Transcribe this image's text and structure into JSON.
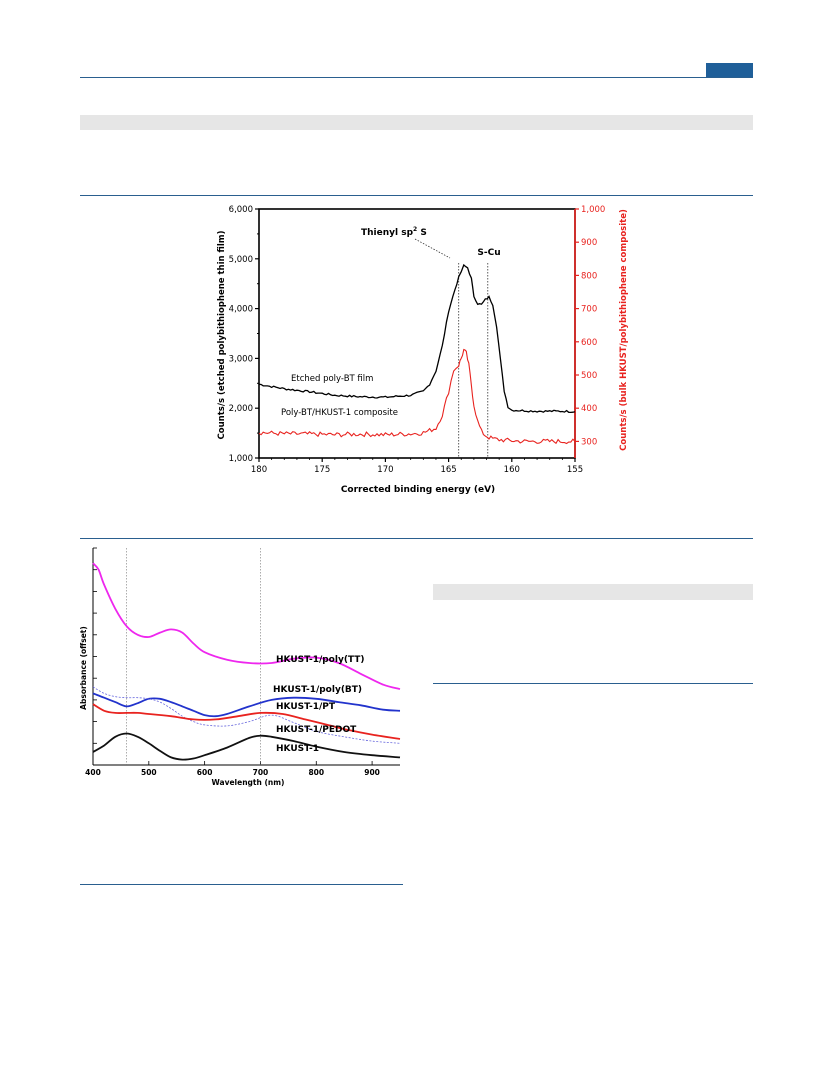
{
  "page": {
    "accent_color": "#1f5f99",
    "rule_color": "#2a5f8f",
    "band_color": "#e6e6e6"
  },
  "figure_xps": {
    "chart_data": {
      "type": "line",
      "xlabel": "Corrected binding energy (eV)",
      "ylabel_left": "Counts/s (etched polybithiophene thin film)",
      "ylabel_right": "Counts/s (bulk HKUST/polybithiophene composite)",
      "xlim": [
        180,
        155
      ],
      "x_ticks": [
        "180",
        "175",
        "170",
        "165",
        "160",
        "155"
      ],
      "ylim_left": [
        1000,
        6000
      ],
      "y_ticks_left": [
        "1,000",
        "2,000",
        "3,000",
        "4,000",
        "5,000",
        "6,000"
      ],
      "ylim_right": [
        250,
        1000
      ],
      "y_ticks_right": [
        "300",
        "400",
        "500",
        "600",
        "700",
        "800",
        "900",
        "1,000"
      ],
      "reference_lines": [
        164.2,
        161.9
      ],
      "annotations": {
        "thienyl": "Thienyl sp",
        "thienyl_sup": "2",
        "thienyl_tail": " S",
        "scu": "S-Cu"
      },
      "series": [
        {
          "name": "Etched poly-BT film",
          "axis": "left",
          "color": "#000000",
          "x": [
            180,
            178,
            176,
            174,
            172,
            170,
            168,
            167,
            166.5,
            166,
            165.5,
            165,
            164.5,
            164.2,
            163.8,
            163.5,
            163.2,
            163,
            162.7,
            162.4,
            162.1,
            161.8,
            161.5,
            161.2,
            160.9,
            160.6,
            160.3,
            160,
            159,
            158,
            157,
            156,
            155
          ],
          "y": [
            2480,
            2390,
            2330,
            2260,
            2230,
            2220,
            2260,
            2340,
            2480,
            2750,
            3250,
            3950,
            4380,
            4620,
            4860,
            4820,
            4600,
            4250,
            4100,
            4080,
            4180,
            4230,
            4080,
            3650,
            2980,
            2350,
            2030,
            1960,
            1950,
            1940,
            1940,
            1940,
            1930
          ]
        },
        {
          "name": "Poly-BT/HKUST-1 composite",
          "axis": "right",
          "color": "#e8231f",
          "x": [
            180,
            178,
            176,
            174,
            172,
            170,
            168,
            167,
            166,
            165.5,
            165,
            164.6,
            164.2,
            164,
            163.8,
            163.6,
            163.4,
            163.2,
            163,
            162.7,
            162.4,
            162.1,
            161.8,
            161.5,
            161,
            160,
            159,
            158,
            157,
            156,
            155
          ],
          "y": [
            327,
            323,
            322,
            320,
            322,
            320,
            323,
            326,
            340,
            380,
            450,
            515,
            530,
            550,
            575,
            565,
            530,
            470,
            410,
            360,
            330,
            318,
            312,
            308,
            305,
            302,
            300,
            300,
            300,
            300,
            300
          ]
        }
      ],
      "legend_labels": {
        "etched": "Etched poly-BT film",
        "composite": "Poly-BT/HKUST-1 composite"
      }
    }
  },
  "figure_uvvis": {
    "chart_data": {
      "type": "line",
      "xlabel": "Wavelength (nm)",
      "ylabel": "Absorbance (offset)",
      "xlim": [
        400,
        950
      ],
      "x_ticks": [
        "400",
        "500",
        "600",
        "700",
        "800",
        "900"
      ],
      "reference_lines": [
        460,
        700
      ],
      "series": [
        {
          "name": "HKUST-1/poly(TT)",
          "color": "#ee27ee",
          "x": [
            400,
            410,
            420,
            440,
            460,
            480,
            500,
            520,
            540,
            560,
            580,
            600,
            640,
            680,
            720,
            760,
            800,
            840,
            880,
            920,
            950
          ],
          "y": [
            9.3,
            9.0,
            8.3,
            7.2,
            6.4,
            6.0,
            5.9,
            6.1,
            6.25,
            6.1,
            5.6,
            5.2,
            4.85,
            4.7,
            4.7,
            4.9,
            4.95,
            4.7,
            4.2,
            3.7,
            3.5
          ]
        },
        {
          "name": "HKUST-1/poly(BT)",
          "color": "#2233cc",
          "x": [
            400,
            420,
            440,
            460,
            480,
            500,
            520,
            540,
            560,
            580,
            600,
            620,
            640,
            680,
            720,
            760,
            800,
            840,
            880,
            920,
            950
          ],
          "y": [
            3.3,
            3.1,
            2.9,
            2.7,
            2.85,
            3.05,
            3.05,
            2.9,
            2.7,
            2.5,
            2.3,
            2.25,
            2.35,
            2.7,
            3.0,
            3.1,
            3.05,
            2.9,
            2.75,
            2.55,
            2.5
          ]
        },
        {
          "name": "HKUST-1/PT",
          "color": "#6666dd",
          "dashed": true,
          "x": [
            400,
            420,
            440,
            460,
            480,
            500,
            520,
            540,
            560,
            580,
            600,
            640,
            680,
            720,
            760,
            800,
            850,
            900,
            950
          ],
          "y": [
            3.6,
            3.3,
            3.15,
            3.1,
            3.1,
            3.05,
            2.9,
            2.6,
            2.25,
            2.0,
            1.85,
            1.8,
            2.0,
            2.3,
            1.95,
            1.55,
            1.3,
            1.1,
            1.0
          ]
        },
        {
          "name": "HKUST-1/PEDOT",
          "color": "#e8231f",
          "x": [
            400,
            420,
            440,
            460,
            480,
            500,
            540,
            580,
            620,
            660,
            700,
            740,
            780,
            820,
            860,
            900,
            950
          ],
          "y": [
            2.8,
            2.5,
            2.4,
            2.4,
            2.4,
            2.35,
            2.25,
            2.1,
            2.1,
            2.25,
            2.4,
            2.35,
            2.1,
            1.85,
            1.6,
            1.4,
            1.2
          ]
        },
        {
          "name": "HKUST-1",
          "color": "#111111",
          "x": [
            400,
            420,
            440,
            460,
            480,
            500,
            520,
            540,
            560,
            580,
            600,
            640,
            680,
            700,
            720,
            760,
            800,
            850,
            900,
            950
          ],
          "y": [
            0.6,
            0.9,
            1.3,
            1.45,
            1.3,
            1.0,
            0.65,
            0.35,
            0.25,
            0.3,
            0.45,
            0.8,
            1.25,
            1.35,
            1.3,
            1.1,
            0.85,
            0.6,
            0.45,
            0.35
          ]
        }
      ]
    }
  }
}
